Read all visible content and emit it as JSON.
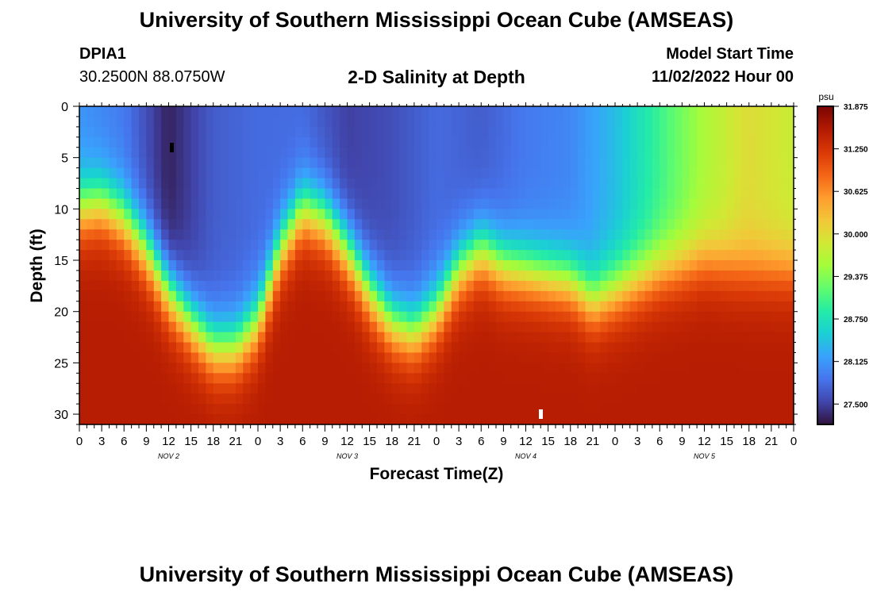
{
  "header": {
    "title": "University of Southern Mississippi Ocean Cube (AMSEAS)",
    "station_id": "DPIA1",
    "station_coords": "30.2500N  88.0750W",
    "subtitle": "2-D Salinity at Depth",
    "model_start_label": "Model Start Time",
    "model_start_value": "11/02/2022 Hour 00"
  },
  "footer": {
    "title": "University of Southern Mississippi Ocean Cube (AMSEAS)"
  },
  "chart_data": {
    "type": "heatmap",
    "title": "2-D Salinity at Depth",
    "xlabel": "Forecast Time(Z)",
    "ylabel": "Depth (ft)",
    "x_range_hours": [
      0,
      96
    ],
    "y_range_ft": [
      0,
      31
    ],
    "x_tick_labels": [
      "0",
      "3",
      "6",
      "9",
      "12",
      "15",
      "18",
      "21",
      "0",
      "3",
      "6",
      "9",
      "12",
      "15",
      "18",
      "21",
      "0",
      "3",
      "6",
      "9",
      "12",
      "15",
      "18",
      "21",
      "0",
      "3",
      "6",
      "9",
      "12",
      "15",
      "18",
      "21",
      "0"
    ],
    "y_tick_labels": [
      "0",
      "5",
      "10",
      "15",
      "20",
      "25",
      "30"
    ],
    "y_tick_values": [
      0,
      5,
      10,
      15,
      20,
      25,
      30
    ],
    "day_labels": [
      {
        "label": "NOV 2",
        "hour": 12
      },
      {
        "label": "NOV 3",
        "hour": 36
      },
      {
        "label": "NOV 4",
        "hour": 60
      },
      {
        "label": "NOV 5",
        "hour": 84
      }
    ],
    "colorbar": {
      "unit": "psu",
      "min": 27.2,
      "max": 31.875,
      "tick_labels": [
        "31.875",
        "31.250",
        "30.625",
        "30.000",
        "29.375",
        "28.750",
        "28.125",
        "27.500"
      ],
      "tick_values": [
        31.875,
        31.25,
        30.625,
        30.0,
        29.375,
        28.75,
        28.125,
        27.5
      ]
    },
    "halocline_depth_ft": [
      {
        "hour": 0,
        "depth": 10
      },
      {
        "hour": 3,
        "depth": 9.5
      },
      {
        "hour": 6,
        "depth": 11
      },
      {
        "hour": 9,
        "depth": 14
      },
      {
        "hour": 12,
        "depth": 18
      },
      {
        "hour": 15,
        "depth": 21
      },
      {
        "hour": 18,
        "depth": 23.5
      },
      {
        "hour": 21,
        "depth": 23.5
      },
      {
        "hour": 24,
        "depth": 21
      },
      {
        "hour": 27,
        "depth": 14
      },
      {
        "hour": 30,
        "depth": 10
      },
      {
        "hour": 33,
        "depth": 11
      },
      {
        "hour": 36,
        "depth": 14
      },
      {
        "hour": 39,
        "depth": 18
      },
      {
        "hour": 42,
        "depth": 21
      },
      {
        "hour": 45,
        "depth": 22
      },
      {
        "hour": 48,
        "depth": 20
      },
      {
        "hour": 51,
        "depth": 16
      },
      {
        "hour": 54,
        "depth": 14
      },
      {
        "hour": 57,
        "depth": 15.5
      },
      {
        "hour": 60,
        "depth": 16
      },
      {
        "hour": 63,
        "depth": 16.5
      },
      {
        "hour": 66,
        "depth": 17
      },
      {
        "hour": 69,
        "depth": 19
      },
      {
        "hour": 72,
        "depth": 18
      },
      {
        "hour": 75,
        "depth": 17
      },
      {
        "hour": 78,
        "depth": 16
      },
      {
        "hour": 81,
        "depth": 15.5
      },
      {
        "hour": 84,
        "depth": 15
      },
      {
        "hour": 87,
        "depth": 15.5
      },
      {
        "hour": 90,
        "depth": 16
      },
      {
        "hour": 93,
        "depth": 16
      },
      {
        "hour": 96,
        "depth": 16
      }
    ],
    "surface_salinity_psu": [
      {
        "hour": 0,
        "value": 28.1
      },
      {
        "hour": 6,
        "value": 27.9
      },
      {
        "hour": 12,
        "value": 27.3
      },
      {
        "hour": 18,
        "value": 27.7
      },
      {
        "hour": 24,
        "value": 27.8
      },
      {
        "hour": 30,
        "value": 27.8
      },
      {
        "hour": 36,
        "value": 27.5
      },
      {
        "hour": 42,
        "value": 27.6
      },
      {
        "hour": 48,
        "value": 27.8
      },
      {
        "hour": 54,
        "value": 27.7
      },
      {
        "hour": 60,
        "value": 27.9
      },
      {
        "hour": 66,
        "value": 28.0
      },
      {
        "hour": 72,
        "value": 28.4
      },
      {
        "hour": 78,
        "value": 29.0
      },
      {
        "hour": 84,
        "value": 29.6
      },
      {
        "hour": 90,
        "value": 30.0
      },
      {
        "hour": 96,
        "value": 29.8
      }
    ],
    "deep_salinity_psu": 31.5,
    "colors": {
      "colormap": [
        "#30123b",
        "#4145ab",
        "#4675ed",
        "#39a2fc",
        "#1bcfd4",
        "#24eca6",
        "#61fc6c",
        "#a4fc3b",
        "#d1e834",
        "#f3c63a",
        "#fe9b2d",
        "#f36315",
        "#d93806",
        "#b11901",
        "#7a0402"
      ],
      "axis": "#000000",
      "marker_dark": "#000000",
      "marker_light": "#ffffff"
    }
  }
}
